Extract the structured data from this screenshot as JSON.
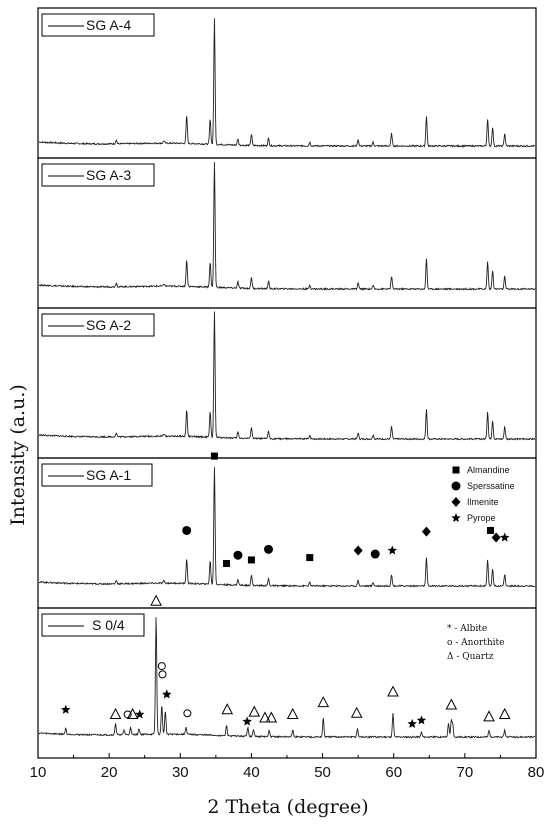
{
  "chart_data": {
    "type": "line",
    "xlabel": "2 Theta (degree)",
    "ylabel": "Intensity (a.u.)",
    "xlim": [
      10,
      80
    ],
    "x_ticks": [
      "10",
      "20",
      "30",
      "40",
      "50",
      "60",
      "70",
      "80"
    ],
    "grid": false,
    "panels": [
      {
        "name": "SG A-4",
        "peaks": [
          [
            21.0,
            0.03
          ],
          [
            27.7,
            0.02
          ],
          [
            30.9,
            0.22
          ],
          [
            34.2,
            0.2
          ],
          [
            34.8,
            1.0
          ],
          [
            38.1,
            0.05
          ],
          [
            40.0,
            0.09
          ],
          [
            42.4,
            0.06
          ],
          [
            48.2,
            0.03
          ],
          [
            55.0,
            0.05
          ],
          [
            57.1,
            0.03
          ],
          [
            59.7,
            0.1
          ],
          [
            64.6,
            0.24
          ],
          [
            73.2,
            0.22
          ],
          [
            73.9,
            0.15
          ],
          [
            75.6,
            0.1
          ]
        ],
        "markers": []
      },
      {
        "name": "SG A-3",
        "peaks": [
          [
            21.0,
            0.03
          ],
          [
            27.7,
            0.02
          ],
          [
            30.9,
            0.21
          ],
          [
            34.2,
            0.2
          ],
          [
            34.8,
            1.0
          ],
          [
            38.1,
            0.05
          ],
          [
            40.0,
            0.09
          ],
          [
            42.4,
            0.06
          ],
          [
            48.2,
            0.03
          ],
          [
            55.0,
            0.05
          ],
          [
            57.1,
            0.03
          ],
          [
            59.7,
            0.1
          ],
          [
            64.6,
            0.24
          ],
          [
            73.2,
            0.22
          ],
          [
            73.9,
            0.15
          ],
          [
            75.6,
            0.1
          ]
        ],
        "markers": []
      },
      {
        "name": "SG A-2",
        "peaks": [
          [
            21.0,
            0.03
          ],
          [
            27.7,
            0.02
          ],
          [
            30.9,
            0.21
          ],
          [
            34.2,
            0.2
          ],
          [
            34.8,
            1.0
          ],
          [
            38.1,
            0.05
          ],
          [
            40.0,
            0.09
          ],
          [
            42.4,
            0.06
          ],
          [
            48.2,
            0.03
          ],
          [
            55.0,
            0.05
          ],
          [
            57.1,
            0.03
          ],
          [
            59.7,
            0.1
          ],
          [
            64.6,
            0.24
          ],
          [
            73.2,
            0.22
          ],
          [
            73.9,
            0.15
          ],
          [
            75.6,
            0.1
          ]
        ],
        "markers": []
      },
      {
        "name": "SG A-1",
        "peaks": [
          [
            21.0,
            0.03
          ],
          [
            27.7,
            0.02
          ],
          [
            30.9,
            0.21
          ],
          [
            34.2,
            0.2
          ],
          [
            34.8,
            1.0
          ],
          [
            38.1,
            0.05
          ],
          [
            40.0,
            0.09
          ],
          [
            42.4,
            0.06
          ],
          [
            48.2,
            0.03
          ],
          [
            55.0,
            0.05
          ],
          [
            57.1,
            0.03
          ],
          [
            59.7,
            0.1
          ],
          [
            64.6,
            0.24
          ],
          [
            73.2,
            0.22
          ],
          [
            73.9,
            0.15
          ],
          [
            75.6,
            0.1
          ]
        ],
        "markers": [
          {
            "x": 34.8,
            "y": 1.05,
            "symbol": "square"
          },
          {
            "x": 30.9,
            "y": 0.42,
            "symbol": "circle"
          },
          {
            "x": 36.5,
            "y": 0.14,
            "symbol": "square"
          },
          {
            "x": 38.1,
            "y": 0.21,
            "symbol": "circle"
          },
          {
            "x": 40.0,
            "y": 0.17,
            "symbol": "square"
          },
          {
            "x": 42.4,
            "y": 0.26,
            "symbol": "circle"
          },
          {
            "x": 48.2,
            "y": 0.19,
            "symbol": "square"
          },
          {
            "x": 55.0,
            "y": 0.25,
            "symbol": "diamond"
          },
          {
            "x": 57.4,
            "y": 0.22,
            "symbol": "circle"
          },
          {
            "x": 59.8,
            "y": 0.25,
            "symbol": "star"
          },
          {
            "x": 64.6,
            "y": 0.41,
            "symbol": "diamond"
          },
          {
            "x": 73.6,
            "y": 0.42,
            "symbol": "square"
          },
          {
            "x": 74.4,
            "y": 0.36,
            "symbol": "diamond"
          },
          {
            "x": 75.6,
            "y": 0.36,
            "symbol": "star"
          }
        ],
        "legend": [
          {
            "symbol": "square",
            "label": "Almandine"
          },
          {
            "symbol": "circle",
            "label": "Sperssatine"
          },
          {
            "symbol": "diamond",
            "label": "Ilmenite"
          },
          {
            "symbol": "star",
            "label": "Pyrope"
          }
        ]
      },
      {
        "name": "S 0/4",
        "peaks": [
          [
            13.9,
            0.05
          ],
          [
            20.9,
            0.1
          ],
          [
            22.1,
            0.04
          ],
          [
            23.0,
            0.06
          ],
          [
            24.2,
            0.05
          ],
          [
            26.6,
            1.0
          ],
          [
            27.4,
            0.25
          ],
          [
            27.9,
            0.2
          ],
          [
            30.8,
            0.06
          ],
          [
            36.5,
            0.09
          ],
          [
            39.5,
            0.08
          ],
          [
            40.3,
            0.06
          ],
          [
            42.5,
            0.05
          ],
          [
            45.8,
            0.06
          ],
          [
            50.1,
            0.16
          ],
          [
            54.9,
            0.07
          ],
          [
            59.9,
            0.2
          ],
          [
            63.9,
            0.04
          ],
          [
            67.7,
            0.12
          ],
          [
            68.1,
            0.14
          ],
          [
            68.3,
            0.1
          ],
          [
            73.4,
            0.06
          ],
          [
            75.6,
            0.06
          ]
        ],
        "markers": [
          {
            "x": 26.6,
            "y": 1.1,
            "symbol": "triangle"
          },
          {
            "x": 13.9,
            "y": 0.18,
            "symbol": "star"
          },
          {
            "x": 20.9,
            "y": 0.14,
            "symbol": "triangle"
          },
          {
            "x": 22.6,
            "y": 0.14,
            "symbol": "circle-open"
          },
          {
            "x": 23.3,
            "y": 0.14,
            "symbol": "triangle"
          },
          {
            "x": 24.3,
            "y": 0.14,
            "symbol": "star"
          },
          {
            "x": 27.4,
            "y": 0.55,
            "symbol": "circle-open"
          },
          {
            "x": 27.5,
            "y": 0.48,
            "symbol": "circle-open"
          },
          {
            "x": 28.1,
            "y": 0.31,
            "symbol": "star"
          },
          {
            "x": 31.0,
            "y": 0.15,
            "symbol": "circle-open"
          },
          {
            "x": 36.6,
            "y": 0.18,
            "symbol": "triangle"
          },
          {
            "x": 39.4,
            "y": 0.08,
            "symbol": "star"
          },
          {
            "x": 40.4,
            "y": 0.16,
            "symbol": "triangle"
          },
          {
            "x": 41.9,
            "y": 0.11,
            "symbol": "triangle"
          },
          {
            "x": 42.8,
            "y": 0.11,
            "symbol": "triangle"
          },
          {
            "x": 45.8,
            "y": 0.14,
            "symbol": "triangle"
          },
          {
            "x": 50.1,
            "y": 0.24,
            "symbol": "triangle"
          },
          {
            "x": 54.8,
            "y": 0.15,
            "symbol": "triangle"
          },
          {
            "x": 59.9,
            "y": 0.33,
            "symbol": "triangle"
          },
          {
            "x": 62.6,
            "y": 0.06,
            "symbol": "star"
          },
          {
            "x": 63.9,
            "y": 0.09,
            "symbol": "star"
          },
          {
            "x": 68.1,
            "y": 0.22,
            "symbol": "triangle"
          },
          {
            "x": 73.4,
            "y": 0.12,
            "symbol": "triangle"
          },
          {
            "x": 75.6,
            "y": 0.14,
            "symbol": "triangle"
          }
        ],
        "legend": [
          {
            "symbol": "asterisk",
            "label": "* - Albite"
          },
          {
            "symbol": "circle-open",
            "label": "o - Anorthite"
          },
          {
            "symbol": "triangle",
            "label": "Δ - Quartz"
          }
        ]
      }
    ]
  }
}
